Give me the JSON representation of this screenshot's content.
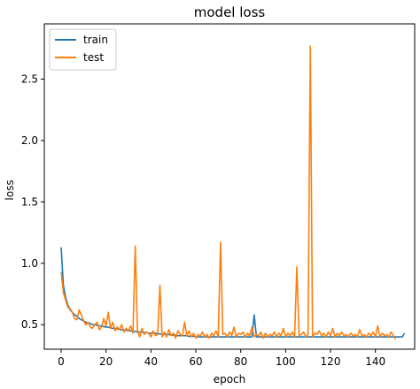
{
  "chart_data": {
    "type": "line",
    "title": "model loss",
    "xlabel": "epoch",
    "ylabel": "loss",
    "xlim": [
      -7.5,
      157.5
    ],
    "ylim": [
      0.3,
      2.95
    ],
    "xticks": [
      0,
      20,
      40,
      60,
      80,
      100,
      120,
      140
    ],
    "yticks": [
      0.5,
      1.0,
      1.5,
      2.0,
      2.5
    ],
    "xtick_labels": [
      "0",
      "20",
      "40",
      "60",
      "80",
      "100",
      "120",
      "140"
    ],
    "ytick_labels": [
      "0.5",
      "1.0",
      "1.5",
      "2.0",
      "2.5"
    ],
    "grid": false,
    "legend_position": "upper-left",
    "series": [
      {
        "name": "train",
        "color": "#1f77b4",
        "values": [
          1.13,
          0.82,
          0.72,
          0.66,
          0.62,
          0.6,
          0.58,
          0.57,
          0.55,
          0.54,
          0.53,
          0.52,
          0.515,
          0.51,
          0.5,
          0.5,
          0.495,
          0.49,
          0.49,
          0.485,
          0.48,
          0.48,
          0.475,
          0.47,
          0.47,
          0.465,
          0.46,
          0.46,
          0.455,
          0.455,
          0.45,
          0.45,
          0.445,
          0.445,
          0.44,
          0.44,
          0.44,
          0.435,
          0.435,
          0.43,
          0.43,
          0.43,
          0.43,
          0.425,
          0.425,
          0.42,
          0.42,
          0.42,
          0.42,
          0.415,
          0.415,
          0.415,
          0.41,
          0.41,
          0.41,
          0.41,
          0.41,
          0.405,
          0.405,
          0.405,
          0.4,
          0.4,
          0.4,
          0.4,
          0.4,
          0.4,
          0.4,
          0.4,
          0.4,
          0.4,
          0.4,
          0.4,
          0.4,
          0.4,
          0.4,
          0.4,
          0.4,
          0.4,
          0.4,
          0.4,
          0.4,
          0.4,
          0.4,
          0.4,
          0.4,
          0.4,
          0.58,
          0.4,
          0.4,
          0.4,
          0.4,
          0.4,
          0.4,
          0.4,
          0.4,
          0.4,
          0.4,
          0.4,
          0.4,
          0.4,
          0.4,
          0.4,
          0.4,
          0.4,
          0.4,
          0.4,
          0.4,
          0.4,
          0.4,
          0.4,
          0.4,
          0.4,
          0.4,
          0.4,
          0.4,
          0.4,
          0.4,
          0.4,
          0.4,
          0.4,
          0.4,
          0.4,
          0.4,
          0.4,
          0.4,
          0.4,
          0.4,
          0.4,
          0.4,
          0.4,
          0.4,
          0.4,
          0.4,
          0.4,
          0.4,
          0.4,
          0.4,
          0.4,
          0.4,
          0.4,
          0.4,
          0.4,
          0.4,
          0.4,
          0.4,
          0.4,
          0.4,
          0.4,
          0.4,
          0.4,
          0.4,
          0.4,
          0.4,
          0.43
        ]
      },
      {
        "name": "test",
        "color": "#ff7f0e",
        "values": [
          0.93,
          0.76,
          0.7,
          0.64,
          0.63,
          0.6,
          0.55,
          0.54,
          0.62,
          0.58,
          0.53,
          0.5,
          0.52,
          0.48,
          0.47,
          0.5,
          0.52,
          0.46,
          0.48,
          0.55,
          0.49,
          0.6,
          0.47,
          0.52,
          0.45,
          0.48,
          0.46,
          0.5,
          0.44,
          0.47,
          0.45,
          0.49,
          0.43,
          1.14,
          0.45,
          0.4,
          0.47,
          0.42,
          0.44,
          0.43,
          0.4,
          0.45,
          0.41,
          0.42,
          0.82,
          0.4,
          0.44,
          0.4,
          0.46,
          0.41,
          0.43,
          0.39,
          0.45,
          0.42,
          0.41,
          0.52,
          0.41,
          0.45,
          0.4,
          0.43,
          0.39,
          0.42,
          0.41,
          0.44,
          0.4,
          0.42,
          0.39,
          0.43,
          0.41,
          0.45,
          0.4,
          1.17,
          0.42,
          0.43,
          0.4,
          0.44,
          0.41,
          0.48,
          0.4,
          0.43,
          0.42,
          0.44,
          0.4,
          0.43,
          0.41,
          0.48,
          0.4,
          0.42,
          0.41,
          0.44,
          0.39,
          0.43,
          0.4,
          0.42,
          0.41,
          0.44,
          0.4,
          0.43,
          0.41,
          0.47,
          0.4,
          0.43,
          0.41,
          0.44,
          0.4,
          0.97,
          0.41,
          0.42,
          0.44,
          0.4,
          0.42,
          2.77,
          0.4,
          0.43,
          0.42,
          0.45,
          0.41,
          0.43,
          0.4,
          0.44,
          0.41,
          0.47,
          0.4,
          0.43,
          0.41,
          0.44,
          0.41,
          0.42,
          0.4,
          0.43,
          0.41,
          0.42,
          0.4,
          0.46,
          0.41,
          0.42,
          0.4,
          0.43,
          0.41,
          0.44,
          0.4,
          0.49,
          0.4,
          0.43,
          0.41,
          0.42,
          0.4,
          0.44,
          0.41,
          0.38
        ]
      }
    ]
  }
}
